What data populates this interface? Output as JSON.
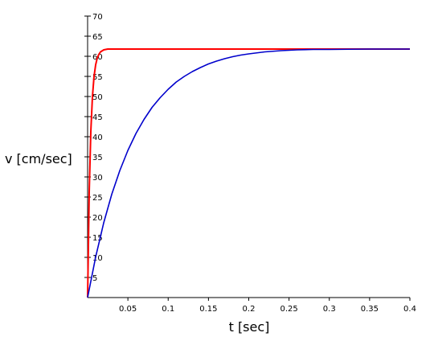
{
  "chart_data": {
    "type": "line",
    "xlabel": "t [sec]",
    "ylabel": "v [cm/sec]",
    "xlim": [
      0,
      0.4
    ],
    "ylim": [
      0,
      70
    ],
    "x_ticks": [
      0.05,
      0.1,
      0.15,
      0.2,
      0.25,
      0.3,
      0.35,
      0.4
    ],
    "x_tick_labels": [
      "0.05",
      "0.1",
      "0.15",
      "0.2",
      "0.25",
      "0.3",
      "0.35",
      "0.4"
    ],
    "y_ticks": [
      5,
      10,
      15,
      20,
      25,
      30,
      35,
      40,
      45,
      50,
      55,
      60,
      65,
      70
    ],
    "y_tick_labels": [
      "5",
      "10",
      "15",
      "20",
      "25",
      "30",
      "35",
      "40",
      "45",
      "50",
      "55",
      "60",
      "65",
      "70"
    ],
    "grid": false,
    "series": [
      {
        "color": "#ff0000",
        "x": [
          0,
          0.002,
          0.004,
          0.006,
          0.008,
          0.01,
          0.012,
          0.014,
          0.016,
          0.02,
          0.025,
          0.03,
          0.05,
          0.1,
          0.2,
          0.3,
          0.4
        ],
        "y": [
          0,
          26.2,
          41.3,
          50.0,
          55.0,
          57.9,
          59.6,
          60.5,
          61.1,
          61.6,
          61.8,
          61.8,
          61.8,
          61.8,
          61.8,
          61.8,
          61.8
        ]
      },
      {
        "color": "#0000cc",
        "x": [
          0,
          0.01,
          0.02,
          0.03,
          0.04,
          0.05,
          0.06,
          0.07,
          0.08,
          0.09,
          0.1,
          0.11,
          0.12,
          0.13,
          0.14,
          0.15,
          0.16,
          0.17,
          0.18,
          0.19,
          0.2,
          0.22,
          0.24,
          0.26,
          0.28,
          0.3,
          0.35,
          0.4
        ],
        "y": [
          0,
          10.1,
          18.6,
          25.7,
          31.6,
          36.6,
          40.8,
          44.3,
          47.3,
          49.7,
          51.8,
          53.6,
          55.0,
          56.2,
          57.2,
          58.1,
          58.8,
          59.4,
          59.9,
          60.3,
          60.6,
          61.1,
          61.4,
          61.6,
          61.7,
          61.7,
          61.8,
          61.8
        ]
      }
    ]
  }
}
